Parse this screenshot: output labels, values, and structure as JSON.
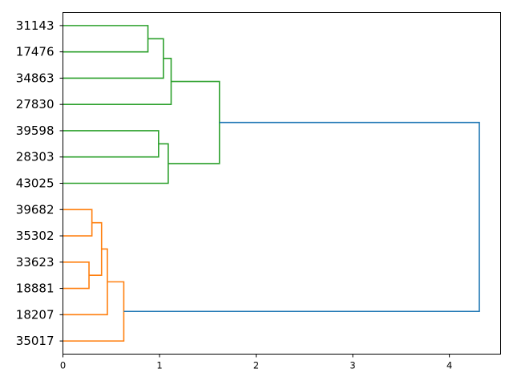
{
  "chart_data": {
    "type": "dendrogram",
    "orientation": "right",
    "leaves": [
      "31143",
      "17476",
      "34863",
      "27830",
      "39598",
      "28303",
      "43025",
      "39682",
      "35302",
      "33623",
      "18881",
      "18207",
      "35017"
    ],
    "xlim": [
      0,
      4.53
    ],
    "xticks": [
      "0",
      "1",
      "2",
      "3",
      "4"
    ],
    "grid": false,
    "colors": {
      "cluster_a": "#2ca02c",
      "cluster_b": "#ff7f0e",
      "above_threshold": "#1f77b4"
    },
    "links": [
      {
        "name": "31143+17476",
        "left": "leaf:0",
        "right": "leaf:1",
        "distance": 0.88,
        "color": "cluster_a"
      },
      {
        "name": "c1+34863",
        "left": "link:31143+17476",
        "right": "leaf:2",
        "distance": 1.04,
        "color": "cluster_a"
      },
      {
        "name": "c2+27830",
        "left": "link:c1+34863",
        "right": "leaf:3",
        "distance": 1.12,
        "color": "cluster_a"
      },
      {
        "name": "39598+28303",
        "left": "leaf:4",
        "right": "leaf:5",
        "distance": 0.99,
        "color": "cluster_a"
      },
      {
        "name": "c4+43025",
        "left": "link:39598+28303",
        "right": "leaf:6",
        "distance": 1.09,
        "color": "cluster_a"
      },
      {
        "name": "green-root",
        "left": "link:c2+27830",
        "right": "link:c4+43025",
        "distance": 1.62,
        "color": "cluster_a"
      },
      {
        "name": "39682+35302",
        "left": "leaf:7",
        "right": "leaf:8",
        "distance": 0.3,
        "color": "cluster_b"
      },
      {
        "name": "33623+18881",
        "left": "leaf:9",
        "right": "leaf:10",
        "distance": 0.27,
        "color": "cluster_b"
      },
      {
        "name": "o1+o2",
        "left": "link:39682+35302",
        "right": "link:33623+18881",
        "distance": 0.4,
        "color": "cluster_b"
      },
      {
        "name": "o3+18207",
        "left": "link:o1+o2",
        "right": "leaf:11",
        "distance": 0.46,
        "color": "cluster_b"
      },
      {
        "name": "orange-root",
        "left": "link:o3+18207",
        "right": "leaf:12",
        "distance": 0.63,
        "color": "cluster_b"
      },
      {
        "name": "root",
        "left": "link:green-root",
        "right": "link:orange-root",
        "distance": 4.31,
        "color": "above_threshold"
      }
    ]
  }
}
